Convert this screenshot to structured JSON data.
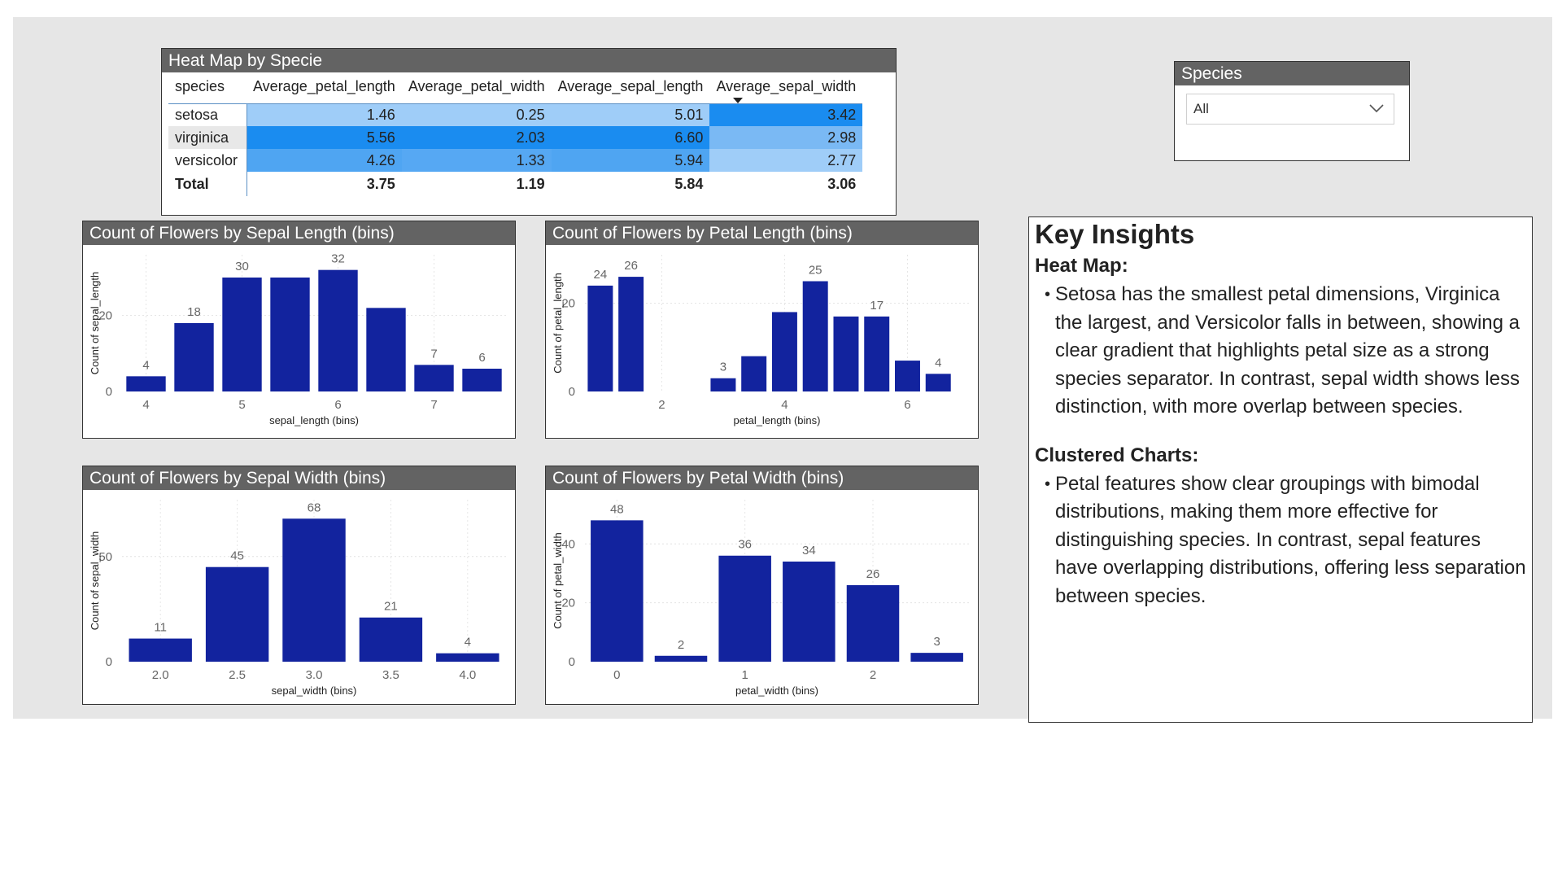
{
  "heatmap": {
    "title": "Heat Map by Specie",
    "columns": [
      "species",
      "Average_petal_length",
      "Average_petal_width",
      "Average_sepal_length",
      "Average_sepal_width"
    ],
    "rows": [
      {
        "label": "setosa",
        "values": [
          "1.46",
          "0.25",
          "5.01",
          "3.42"
        ],
        "colors": [
          "#9fcdf8",
          "#9fcdf8",
          "#9fcdf8",
          "#1a8cf0"
        ]
      },
      {
        "label": "virginica",
        "values": [
          "5.56",
          "2.03",
          "6.60",
          "2.98"
        ],
        "colors": [
          "#1a8cf0",
          "#1a8cf0",
          "#1a8cf0",
          "#7ab9f4"
        ]
      },
      {
        "label": "versicolor",
        "values": [
          "4.26",
          "1.33",
          "5.94",
          "2.77"
        ],
        "colors": [
          "#4fa5f2",
          "#56a8f3",
          "#4fa5f2",
          "#9fcdf8"
        ]
      }
    ],
    "total": {
      "label": "Total",
      "values": [
        "3.75",
        "1.19",
        "5.84",
        "3.06"
      ]
    },
    "sort_icon": "sort-descending-icon"
  },
  "slicer": {
    "title": "Species",
    "selected": "All",
    "icon": "chevron-down-icon"
  },
  "chart_data": [
    {
      "type": "bar",
      "title": "Count of Flowers by Sepal Length (bins)",
      "xlabel": "sepal_length (bins)",
      "ylabel": "Count of sepal_length",
      "x": [
        4.0,
        4.5,
        5.0,
        5.5,
        6.0,
        6.5,
        7.0,
        7.5
      ],
      "values": [
        4,
        18,
        30,
        30,
        32,
        22,
        7,
        6
      ],
      "data_labels": [
        "4",
        "18",
        "30",
        "",
        "32",
        "",
        "7",
        "6"
      ],
      "xticks": [
        4,
        5,
        6,
        7
      ],
      "yticks": [
        0,
        20
      ],
      "xlim": [
        3.75,
        7.75
      ],
      "ylim": [
        0,
        36
      ],
      "bar_color": "#12239e"
    },
    {
      "type": "bar",
      "title": "Count of Flowers by Petal Length (bins)",
      "xlabel": "petal_length (bins)",
      "ylabel": "Count of petal_length",
      "x": [
        1.0,
        1.5,
        3.0,
        3.5,
        4.0,
        4.5,
        5.0,
        5.5,
        6.0,
        6.5
      ],
      "values": [
        24,
        26,
        3,
        8,
        18,
        25,
        17,
        17,
        7,
        4
      ],
      "data_labels": [
        "24",
        "26",
        "3",
        "",
        "",
        "25",
        "",
        "17",
        "",
        "4"
      ],
      "xticks": [
        2,
        4,
        6
      ],
      "yticks": [
        0,
        20
      ],
      "xlim": [
        0.75,
        7.0
      ],
      "ylim": [
        0,
        31
      ],
      "bar_color": "#12239e"
    },
    {
      "type": "bar",
      "title": "Count of Flowers by Sepal Width (bins)",
      "xlabel": "sepal_width (bins)",
      "ylabel": "Count of sepal_width",
      "x": [
        2.0,
        2.5,
        3.0,
        3.5,
        4.0
      ],
      "values": [
        11,
        45,
        68,
        21,
        4
      ],
      "data_labels": [
        "11",
        "45",
        "68",
        "21",
        "4"
      ],
      "xticks": [
        2.0,
        2.5,
        3.0,
        3.5,
        4.0
      ],
      "xtick_labels": [
        "2.0",
        "2.5",
        "3.0",
        "3.5",
        "4.0"
      ],
      "yticks": [
        0,
        50
      ],
      "xlim": [
        1.75,
        4.25
      ],
      "ylim": [
        0,
        77
      ],
      "bar_color": "#12239e"
    },
    {
      "type": "bar",
      "title": "Count of Flowers by Petal Width (bins)",
      "xlabel": "petal_width (bins)",
      "ylabel": "Count of petal_width",
      "x": [
        0.0,
        0.5,
        1.0,
        1.5,
        2.0,
        2.5
      ],
      "values": [
        48,
        2,
        36,
        34,
        26,
        3
      ],
      "data_labels": [
        "48",
        "2",
        "36",
        "34",
        "26",
        "3"
      ],
      "xticks": [
        0,
        1,
        2
      ],
      "yticks": [
        0,
        20,
        40
      ],
      "xlim": [
        -0.25,
        2.75
      ],
      "ylim": [
        0,
        55
      ],
      "bar_color": "#12239e"
    }
  ],
  "insights": {
    "title": "Key Insights",
    "heatmap_heading": "Heat Map:",
    "heatmap_text": "Setosa has the smallest petal dimensions, Virginica the largest, and Versicolor falls in between, showing a clear gradient that highlights petal size as a strong species separator. In contrast, sepal width shows less distinction, with more overlap between species.",
    "clustered_heading": "Clustered Charts:",
    "clustered_text": "Petal features show clear groupings with bimodal distributions, making them more effective for distinguishing species. In contrast, sepal features have overlapping distributions, offering less separation between species."
  }
}
